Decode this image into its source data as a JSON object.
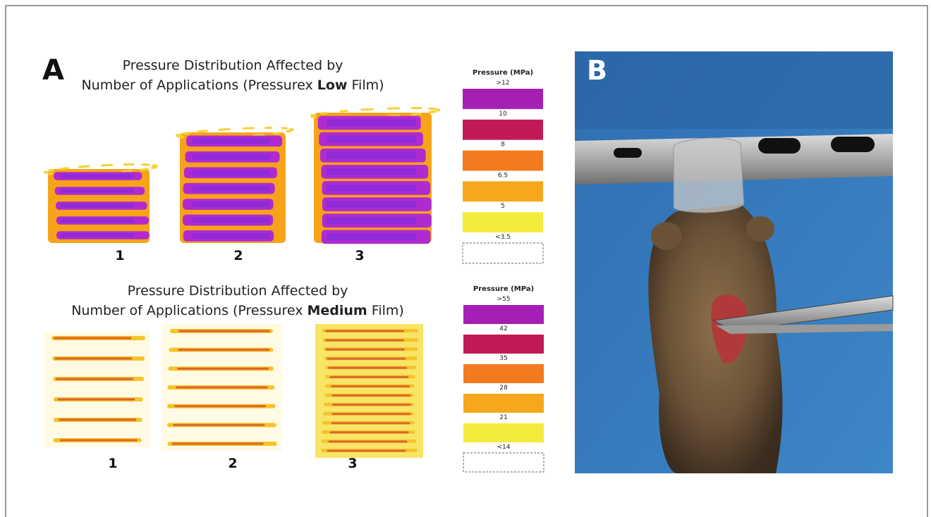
{
  "panel_a": {
    "label": "A",
    "low": {
      "title_line1": "Pressure Distribution Affected by",
      "title_line2_before": "Number of Applications (Pressurex ",
      "title_line2_bold": "Low",
      "title_line2_after": " Film)",
      "samples": [
        "1",
        "2",
        "3"
      ],
      "legend": {
        "title": "Pressure (MPa)",
        "labels": [
          ">12",
          "10",
          "8",
          "6.5",
          "5",
          "<3.5"
        ],
        "colors": [
          "#a51fb5",
          "#c11a57",
          "#f47a1f",
          "#f7a71c",
          "#f4ec3c",
          "#ffffff"
        ]
      }
    },
    "medium": {
      "title_line1": "Pressure Distribution Affected by",
      "title_line2_before": "Number of Applications (Pressurex ",
      "title_line2_bold": "Medium",
      "title_line2_after": " Film)",
      "samples": [
        "1",
        "2",
        "3"
      ],
      "legend": {
        "title": "Pressure (MPa)",
        "labels": [
          ">55",
          "42",
          "35",
          "28",
          "21",
          "<14"
        ],
        "colors": [
          "#a51fb5",
          "#c11a57",
          "#f47a1f",
          "#f7a71c",
          "#f4ec3c",
          "#ffffff"
        ]
      }
    }
  },
  "panel_b": {
    "label": "B"
  }
}
